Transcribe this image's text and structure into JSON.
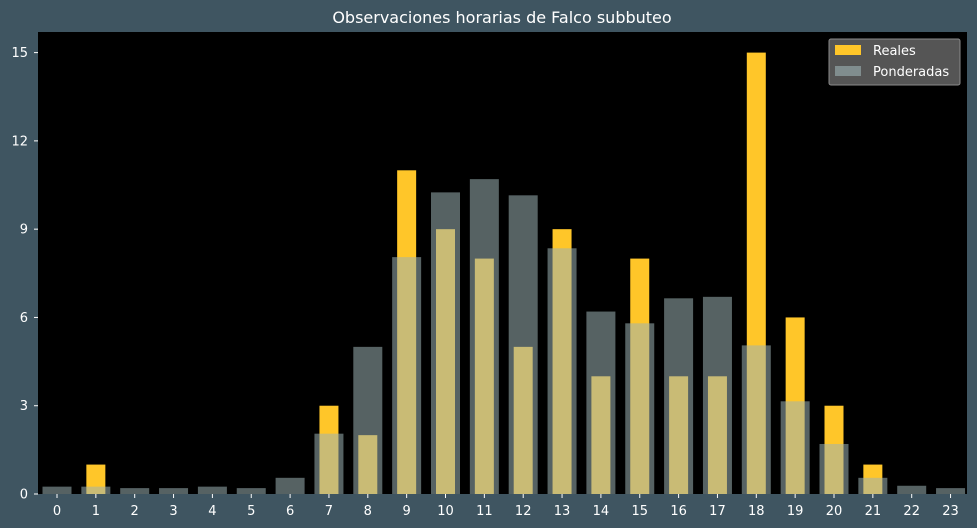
{
  "colors": {
    "figure_background": "#3f5561",
    "plot_background": "#000000",
    "reales": "#ffc629",
    "ponderadas": "#9db2b4",
    "text": "#ffffff",
    "legend_background": "#555555"
  },
  "chart_data": {
    "type": "bar",
    "title": "Observaciones horarias de Falco subbuteo",
    "xlabel": "",
    "ylabel": "",
    "categories": [
      "0",
      "1",
      "2",
      "3",
      "4",
      "5",
      "6",
      "7",
      "8",
      "9",
      "10",
      "11",
      "12",
      "13",
      "14",
      "15",
      "16",
      "17",
      "18",
      "19",
      "20",
      "21",
      "22",
      "23"
    ],
    "ylim": [
      0,
      15.7
    ],
    "yticks": [
      0,
      3,
      6,
      9,
      12,
      15
    ],
    "grid": false,
    "legend_position": "top-right",
    "series": [
      {
        "name": "Reales",
        "color": "#ffc629",
        "values": [
          0,
          1,
          0,
          0,
          0,
          0,
          0,
          3,
          2,
          11,
          9,
          8,
          5,
          9,
          4,
          8,
          4,
          4,
          15,
          6,
          3,
          1,
          0,
          0
        ]
      },
      {
        "name": "Ponderadas",
        "color": "#9db2b4",
        "values": [
          0.25,
          0.25,
          0.2,
          0.2,
          0.25,
          0.2,
          0.55,
          2.05,
          5.0,
          8.05,
          10.25,
          10.7,
          10.15,
          8.35,
          6.2,
          5.8,
          6.65,
          6.7,
          5.05,
          3.15,
          1.7,
          0.55,
          0.28,
          0.2
        ]
      }
    ]
  }
}
